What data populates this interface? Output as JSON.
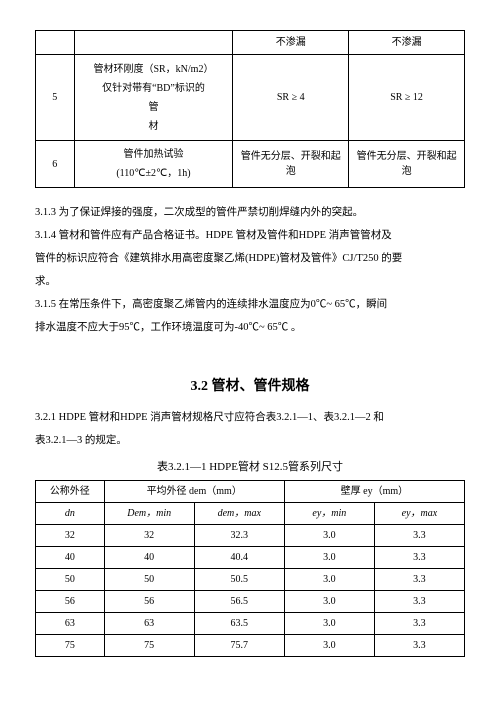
{
  "table1": {
    "header": {
      "c3": "不渗漏",
      "c4": "不渗漏"
    },
    "row5": {
      "num": "5",
      "desc": "管材环刚度（SR，kN/m2）\n仅针对带有“BD”标识的\n管\n材",
      "c3": "SR ≥ 4",
      "c4": "SR ≥ 12"
    },
    "row6": {
      "num": "6",
      "desc": "管件加热试验\n(110℃±2℃，1h)",
      "c3": "管件无分层、开裂和起泡",
      "c4": "管件无分层、开裂和起泡"
    }
  },
  "paras": {
    "p313": "3.1.3 为了保证焊接的强度，二次成型的管件严禁切削焊缝内外的突起。",
    "p314a": "3.1.4 管材和管件应有产品合格证书。HDPE 管材及管件和HDPE 消声管管材及",
    "p314b": "管件的标识应符合《建筑排水用高密度聚乙烯(HDPE)管材及管件》CJ/T250 的要",
    "p314c": "求。",
    "p315a": "3.1.5 在常压条件下，高密度聚乙烯管内的连续排水温度应为0℃~ 65℃，瞬间",
    "p315b": "排水温度不应大于95℃，工作环境温度可为-40℃~ 65℃ 。"
  },
  "section32": {
    "title": "3.2 管材、管件规格",
    "intro1": "3.2.1 HDPE 管材和HDPE 消声管材规格尺寸应符合表3.2.1—1、表3.2.1—2 和",
    "intro2": "表3.2.1—3 的规定。",
    "caption": "表3.2.1—1  HDPE管材 S12.5管系列尺寸"
  },
  "table2": {
    "h_dn_label": "公称外径",
    "h_dn_unit": "dn",
    "h_dem_group": "平均外径 dem（mm）",
    "h_ey_group": "壁厚 ey（mm）",
    "h_dem_min": "Dem，min",
    "h_dem_max": "dem，max",
    "h_ey_min": "ey，min",
    "h_ey_max": "ey，max",
    "rows": [
      {
        "dn": "32",
        "dmin": "32",
        "dmax": "32.3",
        "emin": "3.0",
        "emax": "3.3"
      },
      {
        "dn": "40",
        "dmin": "40",
        "dmax": "40.4",
        "emin": "3.0",
        "emax": "3.3"
      },
      {
        "dn": "50",
        "dmin": "50",
        "dmax": "50.5",
        "emin": "3.0",
        "emax": "3.3"
      },
      {
        "dn": "56",
        "dmin": "56",
        "dmax": "56.5",
        "emin": "3.0",
        "emax": "3.3"
      },
      {
        "dn": "63",
        "dmin": "63",
        "dmax": "63.5",
        "emin": "3.0",
        "emax": "3.3"
      },
      {
        "dn": "75",
        "dmin": "75",
        "dmax": "75.7",
        "emin": "3.0",
        "emax": "3.3"
      }
    ]
  }
}
